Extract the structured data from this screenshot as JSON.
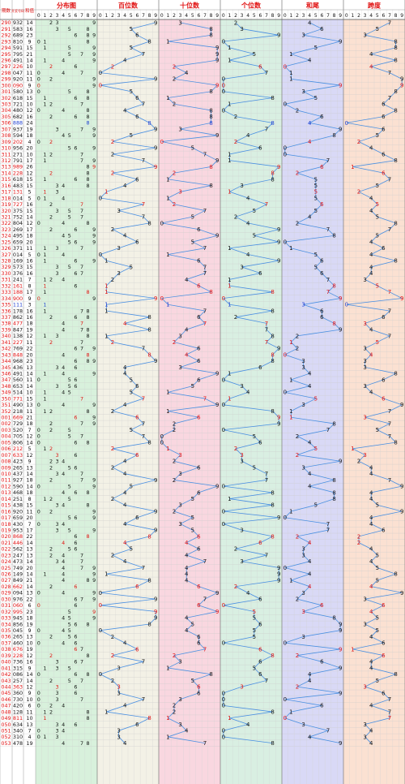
{
  "chart_data": {
    "type": "line",
    "header": {
      "col_issue": "期数",
      "col_number": "开奖号码",
      "col_sum": "和值",
      "groups": [
        {
          "key": "dist",
          "title": "分布图",
          "digits": [
            "0",
            "1",
            "2",
            "3",
            "4",
            "5",
            "6",
            "7",
            "8",
            "9"
          ]
        },
        {
          "key": "hundreds",
          "title": "百位数",
          "digits": [
            "0",
            "1",
            "2",
            "3",
            "4",
            "5",
            "6",
            "7",
            "8",
            "9"
          ]
        },
        {
          "key": "tens",
          "title": "十位数",
          "digits": [
            "0",
            "1",
            "2",
            "3",
            "4",
            "5",
            "6",
            "7",
            "8",
            "9"
          ]
        },
        {
          "key": "units",
          "title": "个位数",
          "digits": [
            "0",
            "1",
            "2",
            "3",
            "4",
            "5",
            "6",
            "7",
            "8",
            "9"
          ]
        },
        {
          "key": "sumtail",
          "title": "和尾",
          "digits": [
            "0",
            "1",
            "2",
            "3",
            "4",
            "5",
            "6",
            "7",
            "8",
            "9"
          ]
        },
        {
          "key": "span",
          "title": "跨度",
          "digits": [
            "0",
            "1",
            "2",
            "3",
            "4",
            "5",
            "6",
            "7",
            "8",
            "9"
          ]
        }
      ]
    },
    "colors": {
      "dist_bg": "#d8f1dc",
      "hundreds_bg": "#f3f1e6",
      "tens_bg": "#f9d7e0",
      "units_bg": "#d9efe2",
      "sumtail_bg": "#d9d9f6",
      "span_bg": "#fbe1d2",
      "line": "#4a90e2",
      "text_red": "#e01010",
      "text_black": "#111111",
      "text_blue": "#1f3fd0"
    },
    "rows": [
      {
        "issue": "290",
        "number": "932",
        "sum": "14"
      },
      {
        "issue": "291",
        "number": "583",
        "sum": "16"
      },
      {
        "issue": "292",
        "number": "689",
        "sum": "23"
      },
      {
        "issue": "293",
        "number": "810",
        "sum": "9"
      },
      {
        "issue": "294",
        "number": "591",
        "sum": "15"
      },
      {
        "issue": "295",
        "number": "795",
        "sum": "21"
      },
      {
        "issue": "296",
        "number": "491",
        "sum": "14"
      },
      {
        "issue": "297",
        "number": "226",
        "sum": "10"
      },
      {
        "issue": "298",
        "number": "047",
        "sum": "11"
      },
      {
        "issue": "299",
        "number": "920",
        "sum": "11"
      },
      {
        "issue": "300",
        "number": "090",
        "sum": "9"
      },
      {
        "issue": "301",
        "number": "580",
        "sum": "13"
      },
      {
        "issue": "302",
        "number": "618",
        "sum": "15"
      },
      {
        "issue": "303",
        "number": "721",
        "sum": "10"
      },
      {
        "issue": "304",
        "number": "480",
        "sum": "12"
      },
      {
        "issue": "305",
        "number": "682",
        "sum": "16"
      },
      {
        "issue": "306",
        "number": "888",
        "sum": "24"
      },
      {
        "issue": "307",
        "number": "937",
        "sum": "19"
      },
      {
        "issue": "308",
        "number": "594",
        "sum": "18"
      },
      {
        "issue": "309",
        "number": "202",
        "sum": "4"
      },
      {
        "issue": "310",
        "number": "956",
        "sum": "20"
      },
      {
        "issue": "311",
        "number": "271",
        "sum": "10"
      },
      {
        "issue": "312",
        "number": "791",
        "sum": "17"
      },
      {
        "issue": "313",
        "number": "989",
        "sum": "26"
      },
      {
        "issue": "314",
        "number": "228",
        "sum": "12"
      },
      {
        "issue": "315",
        "number": "618",
        "sum": "15"
      },
      {
        "issue": "316",
        "number": "483",
        "sum": "15"
      },
      {
        "issue": "317",
        "number": "131",
        "sum": "5"
      },
      {
        "issue": "318",
        "number": "014",
        "sum": "5"
      },
      {
        "issue": "319",
        "number": "727",
        "sum": "16"
      },
      {
        "issue": "320",
        "number": "375",
        "sum": "15"
      },
      {
        "issue": "321",
        "number": "752",
        "sum": "14"
      },
      {
        "issue": "322",
        "number": "804",
        "sum": "12"
      },
      {
        "issue": "323",
        "number": "269",
        "sum": "17"
      },
      {
        "issue": "324",
        "number": "495",
        "sum": "18"
      },
      {
        "issue": "325",
        "number": "659",
        "sum": "20"
      },
      {
        "issue": "326",
        "number": "371",
        "sum": "11"
      },
      {
        "issue": "327",
        "number": "014",
        "sum": "5"
      },
      {
        "issue": "328",
        "number": "169",
        "sum": "16"
      },
      {
        "issue": "329",
        "number": "573",
        "sum": "15"
      },
      {
        "issue": "330",
        "number": "376",
        "sum": "16"
      },
      {
        "issue": "331",
        "number": "241",
        "sum": "7"
      },
      {
        "issue": "332",
        "number": "161",
        "sum": "8"
      },
      {
        "issue": "333",
        "number": "188",
        "sum": "17"
      },
      {
        "issue": "334",
        "number": "900",
        "sum": "9"
      },
      {
        "issue": "335",
        "number": "111",
        "sum": "3"
      },
      {
        "issue": "336",
        "number": "178",
        "sum": "16"
      },
      {
        "issue": "337",
        "number": "862",
        "sum": "16"
      },
      {
        "issue": "338",
        "number": "477",
        "sum": "18"
      },
      {
        "issue": "339",
        "number": "847",
        "sum": "19"
      },
      {
        "issue": "340",
        "number": "138",
        "sum": "12"
      },
      {
        "issue": "341",
        "number": "227",
        "sum": "11"
      },
      {
        "issue": "342",
        "number": "769",
        "sum": "22"
      },
      {
        "issue": "343",
        "number": "848",
        "sum": "20"
      },
      {
        "issue": "344",
        "number": "968",
        "sum": "23"
      },
      {
        "issue": "345",
        "number": "436",
        "sum": "13"
      },
      {
        "issue": "346",
        "number": "491",
        "sum": "14"
      },
      {
        "issue": "347",
        "number": "560",
        "sum": "11"
      },
      {
        "issue": "348",
        "number": "653",
        "sum": "14"
      },
      {
        "issue": "349",
        "number": "514",
        "sum": "10"
      },
      {
        "issue": "350",
        "number": "771",
        "sum": "15"
      },
      {
        "issue": "351",
        "number": "490",
        "sum": "13"
      },
      {
        "issue": "352",
        "number": "218",
        "sum": "11"
      },
      {
        "issue": "001",
        "number": "669",
        "sum": "21"
      },
      {
        "issue": "002",
        "number": "729",
        "sum": "18"
      },
      {
        "issue": "003",
        "number": "520",
        "sum": "7"
      },
      {
        "issue": "004",
        "number": "705",
        "sum": "12"
      },
      {
        "issue": "005",
        "number": "806",
        "sum": "14"
      },
      {
        "issue": "006",
        "number": "212",
        "sum": "5"
      },
      {
        "issue": "007",
        "number": "633",
        "sum": "12"
      },
      {
        "issue": "008",
        "number": "423",
        "sum": "9"
      },
      {
        "issue": "009",
        "number": "265",
        "sum": "13"
      },
      {
        "issue": "010",
        "number": "437",
        "sum": "14"
      },
      {
        "issue": "011",
        "number": "927",
        "sum": "18"
      },
      {
        "issue": "012",
        "number": "590",
        "sum": "14"
      },
      {
        "issue": "013",
        "number": "468",
        "sum": "18"
      },
      {
        "issue": "014",
        "number": "251",
        "sum": "8"
      },
      {
        "issue": "015",
        "number": "438",
        "sum": "15"
      },
      {
        "issue": "016",
        "number": "920",
        "sum": "11"
      },
      {
        "issue": "017",
        "number": "659",
        "sum": "20"
      },
      {
        "issue": "018",
        "number": "430",
        "sum": "7"
      },
      {
        "issue": "019",
        "number": "953",
        "sum": "17"
      },
      {
        "issue": "020",
        "number": "868",
        "sum": "22"
      },
      {
        "issue": "021",
        "number": "446",
        "sum": "14"
      },
      {
        "issue": "022",
        "number": "562",
        "sum": "13"
      },
      {
        "issue": "023",
        "number": "247",
        "sum": "13"
      },
      {
        "issue": "024",
        "number": "473",
        "sum": "14"
      },
      {
        "issue": "025",
        "number": "749",
        "sum": "20"
      },
      {
        "issue": "026",
        "number": "149",
        "sum": "14"
      },
      {
        "issue": "027",
        "number": "849",
        "sum": "21"
      },
      {
        "issue": "028",
        "number": "662",
        "sum": "14"
      },
      {
        "issue": "029",
        "number": "094",
        "sum": "13"
      },
      {
        "issue": "030",
        "number": "976",
        "sum": "22"
      },
      {
        "issue": "031",
        "number": "060",
        "sum": "6"
      },
      {
        "issue": "032",
        "number": "995",
        "sum": "23"
      },
      {
        "issue": "033",
        "number": "945",
        "sum": "18"
      },
      {
        "issue": "034",
        "number": "856",
        "sum": "19"
      },
      {
        "issue": "035",
        "number": "045",
        "sum": "9"
      },
      {
        "issue": "036",
        "number": "265",
        "sum": "13"
      },
      {
        "issue": "037",
        "number": "460",
        "sum": "10"
      },
      {
        "issue": "038",
        "number": "676",
        "sum": "19"
      },
      {
        "issue": "039",
        "number": "228",
        "sum": "12"
      },
      {
        "issue": "040",
        "number": "736",
        "sum": "16"
      },
      {
        "issue": "041",
        "number": "315",
        "sum": "9"
      },
      {
        "issue": "042",
        "number": "086",
        "sum": "14"
      },
      {
        "issue": "043",
        "number": "257",
        "sum": "14"
      },
      {
        "issue": "044",
        "number": "363",
        "sum": "12"
      },
      {
        "issue": "045",
        "number": "360",
        "sum": "9"
      },
      {
        "issue": "046",
        "number": "730",
        "sum": "10"
      },
      {
        "issue": "047",
        "number": "420",
        "sum": "6"
      },
      {
        "issue": "048",
        "number": "128",
        "sum": "11"
      },
      {
        "issue": "049",
        "number": "811",
        "sum": "10"
      },
      {
        "issue": "050",
        "number": "634",
        "sum": "13"
      },
      {
        "issue": "051",
        "number": "340",
        "sum": "7"
      },
      {
        "issue": "052",
        "number": "310",
        "sum": "4"
      },
      {
        "issue": "053",
        "number": "478",
        "sum": "19"
      }
    ]
  }
}
